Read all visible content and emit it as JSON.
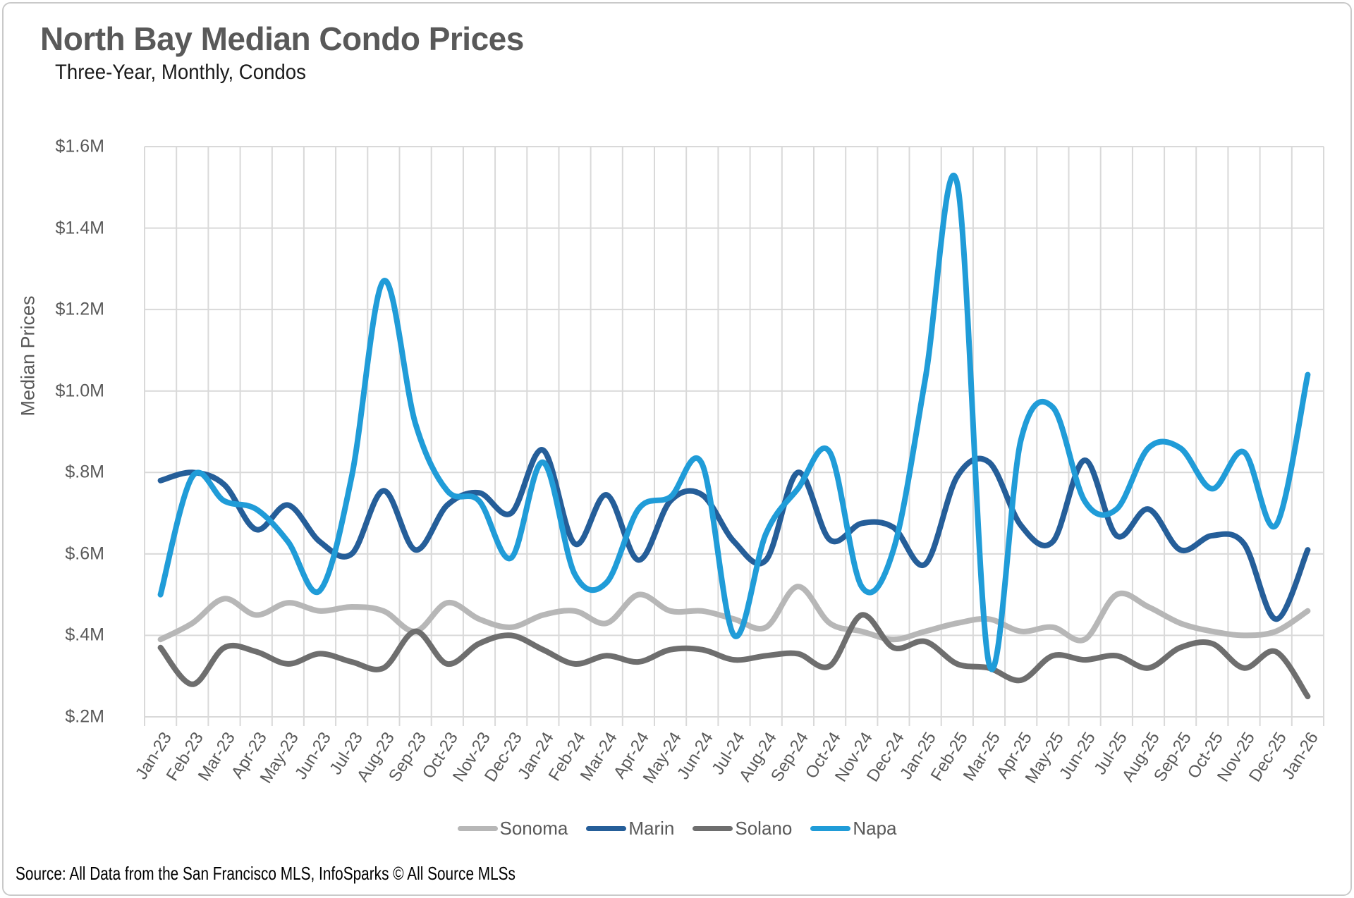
{
  "header": {
    "title": "North Bay Median Condo Prices",
    "subtitle": "Three-Year, Monthly, Condos"
  },
  "footer": {
    "source": "Source: All Data from the San Francisco MLS, InfoSparks © All Source MLSs"
  },
  "chart_data": {
    "type": "line",
    "title": "North Bay Median Condo Prices",
    "subtitle": "Three-Year, Monthly, Condos",
    "xlabel": "",
    "ylabel": "Median Prices",
    "unit": "millions of dollars",
    "ylim": [
      0.2,
      1.6
    ],
    "y_ticks": [
      1.6,
      1.4,
      1.2,
      1.0,
      0.8,
      0.6,
      0.4,
      0.2
    ],
    "y_tick_labels": [
      "$1.6M",
      "$1.4M",
      "$1.2M",
      "$1.0M",
      "$.8M",
      "$.6M",
      "$.4M",
      "$.2M"
    ],
    "grid": true,
    "smoothing": "spline",
    "legend_position": "bottom",
    "categories": [
      "Jan-23",
      "Feb-23",
      "Mar-23",
      "Apr-23",
      "May-23",
      "Jun-23",
      "Jul-23",
      "Aug-23",
      "Sep-23",
      "Oct-23",
      "Nov-23",
      "Dec-23",
      "Jan-24",
      "Feb-24",
      "Mar-24",
      "Apr-24",
      "May-24",
      "Jun-24",
      "Jul-24",
      "Aug-24",
      "Sep-24",
      "Oct-24",
      "Nov-24",
      "Dec-24",
      "Jan-25",
      "Feb-25",
      "Mar-25",
      "Apr-25",
      "May-25",
      "Jun-25",
      "Jul-25",
      "Aug-25",
      "Sep-25",
      "Oct-25",
      "Nov-25",
      "Dec-25",
      "Jan-26"
    ],
    "series": [
      {
        "name": "Sonoma",
        "color": "#b7b7b7",
        "values": [
          0.39,
          0.43,
          0.49,
          0.45,
          0.48,
          0.46,
          0.47,
          0.46,
          0.41,
          0.48,
          0.44,
          0.42,
          0.45,
          0.46,
          0.43,
          0.5,
          0.46,
          0.46,
          0.44,
          0.42,
          0.52,
          0.43,
          0.41,
          0.39,
          0.41,
          0.43,
          0.44,
          0.41,
          0.42,
          0.39,
          0.5,
          0.47,
          0.43,
          0.41,
          0.4,
          0.41,
          0.46
        ]
      },
      {
        "name": "Marin",
        "color": "#255e99",
        "values": [
          0.78,
          0.8,
          0.77,
          0.66,
          0.72,
          0.63,
          0.6,
          0.755,
          0.61,
          0.72,
          0.75,
          0.7,
          0.855,
          0.625,
          0.745,
          0.585,
          0.73,
          0.745,
          0.63,
          0.585,
          0.8,
          0.635,
          0.675,
          0.665,
          0.575,
          0.79,
          0.825,
          0.67,
          0.63,
          0.83,
          0.645,
          0.71,
          0.61,
          0.645,
          0.625,
          0.44,
          0.61
        ]
      },
      {
        "name": "Solano",
        "color": "#6e6e6e",
        "values": [
          0.37,
          0.28,
          0.37,
          0.36,
          0.33,
          0.355,
          0.335,
          0.32,
          0.41,
          0.33,
          0.38,
          0.4,
          0.365,
          0.33,
          0.35,
          0.335,
          0.365,
          0.365,
          0.34,
          0.35,
          0.355,
          0.325,
          0.45,
          0.37,
          0.385,
          0.33,
          0.32,
          0.29,
          0.35,
          0.34,
          0.35,
          0.32,
          0.37,
          0.38,
          0.32,
          0.36,
          0.25
        ]
      },
      {
        "name": "Napa",
        "color": "#209cd8",
        "values": [
          0.5,
          0.79,
          0.73,
          0.71,
          0.63,
          0.51,
          0.79,
          1.27,
          0.92,
          0.755,
          0.73,
          0.59,
          0.825,
          0.55,
          0.53,
          0.71,
          0.74,
          0.82,
          0.4,
          0.65,
          0.76,
          0.85,
          0.52,
          0.61,
          1.03,
          1.51,
          0.33,
          0.88,
          0.96,
          0.73,
          0.71,
          0.86,
          0.86,
          0.76,
          0.85,
          0.67,
          1.04
        ]
      }
    ],
    "style": {
      "gridline_color": "#d9d9d9",
      "axis_text_color": "#595959",
      "title_color": "#595959",
      "subtitle_color": "#1a1a1a",
      "source_color": "#000000",
      "card_border_color": "#c9c9c9",
      "background": "#ffffff"
    }
  }
}
